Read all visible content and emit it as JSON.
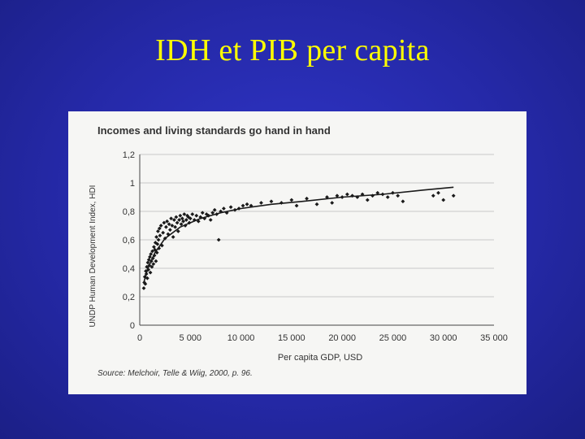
{
  "slide": {
    "title": "IDH et PIB per capita"
  },
  "chart_data": {
    "type": "scatter",
    "title": "Incomes and living standards go hand in hand",
    "xlabel": "Per capita GDP, USD",
    "ylabel": "UNDP Human Development Index, HDI",
    "source": "Source: Melchoir, Telle & Wiig, 2000, p. 96.",
    "xlim": [
      0,
      35000
    ],
    "ylim": [
      0,
      1.2
    ],
    "xticks": [
      0,
      5000,
      10000,
      15000,
      20000,
      25000,
      30000,
      35000
    ],
    "xtick_labels": [
      "0",
      "5 000",
      "10 000",
      "15 000",
      "20 000",
      "25 000",
      "30 000",
      "35 000"
    ],
    "yticks": [
      0,
      0.2,
      0.4,
      0.6,
      0.8,
      1,
      1.2
    ],
    "ytick_labels": [
      "0",
      "0,2",
      "0,4",
      "0,6",
      "0,8",
      "1",
      "1,2"
    ],
    "grid": true,
    "colors": {
      "points": "#1a1a1a",
      "trend": "#1a1a1a",
      "grid": "#c8c8c8",
      "axis": "#444444"
    },
    "points": [
      [
        400,
        0.26
      ],
      [
        450,
        0.3
      ],
      [
        500,
        0.34
      ],
      [
        550,
        0.29
      ],
      [
        600,
        0.38
      ],
      [
        650,
        0.36
      ],
      [
        700,
        0.41
      ],
      [
        750,
        0.33
      ],
      [
        800,
        0.44
      ],
      [
        850,
        0.39
      ],
      [
        900,
        0.46
      ],
      [
        950,
        0.42
      ],
      [
        1000,
        0.48
      ],
      [
        1050,
        0.37
      ],
      [
        1100,
        0.5
      ],
      [
        1150,
        0.45
      ],
      [
        1200,
        0.41
      ],
      [
        1250,
        0.52
      ],
      [
        1300,
        0.47
      ],
      [
        1350,
        0.43
      ],
      [
        1400,
        0.55
      ],
      [
        1450,
        0.49
      ],
      [
        1500,
        0.53
      ],
      [
        1550,
        0.58
      ],
      [
        1600,
        0.45
      ],
      [
        1650,
        0.62
      ],
      [
        1700,
        0.51
      ],
      [
        1750,
        0.57
      ],
      [
        1800,
        0.66
      ],
      [
        1850,
        0.6
      ],
      [
        1900,
        0.54
      ],
      [
        1950,
        0.68
      ],
      [
        2000,
        0.63
      ],
      [
        2100,
        0.7
      ],
      [
        2200,
        0.56
      ],
      [
        2300,
        0.65
      ],
      [
        2400,
        0.72
      ],
      [
        2500,
        0.61
      ],
      [
        2600,
        0.69
      ],
      [
        2700,
        0.73
      ],
      [
        2800,
        0.64
      ],
      [
        2900,
        0.71
      ],
      [
        3000,
        0.67
      ],
      [
        3100,
        0.75
      ],
      [
        3200,
        0.7
      ],
      [
        3300,
        0.62
      ],
      [
        3400,
        0.74
      ],
      [
        3500,
        0.69
      ],
      [
        3600,
        0.76
      ],
      [
        3700,
        0.72
      ],
      [
        3800,
        0.66
      ],
      [
        3900,
        0.74
      ],
      [
        4000,
        0.77
      ],
      [
        4100,
        0.71
      ],
      [
        4200,
        0.75
      ],
      [
        4300,
        0.73
      ],
      [
        4400,
        0.78
      ],
      [
        4500,
        0.7
      ],
      [
        4600,
        0.74
      ],
      [
        4700,
        0.77
      ],
      [
        4800,
        0.76
      ],
      [
        4900,
        0.72
      ],
      [
        5000,
        0.75
      ],
      [
        5200,
        0.78
      ],
      [
        5400,
        0.74
      ],
      [
        5600,
        0.77
      ],
      [
        5800,
        0.73
      ],
      [
        6000,
        0.76
      ],
      [
        6200,
        0.79
      ],
      [
        6400,
        0.75
      ],
      [
        6600,
        0.78
      ],
      [
        6800,
        0.77
      ],
      [
        7000,
        0.74
      ],
      [
        7200,
        0.79
      ],
      [
        7400,
        0.81
      ],
      [
        7600,
        0.78
      ],
      [
        7800,
        0.6
      ],
      [
        8000,
        0.8
      ],
      [
        8300,
        0.82
      ],
      [
        8600,
        0.79
      ],
      [
        9000,
        0.83
      ],
      [
        9400,
        0.81
      ],
      [
        9800,
        0.82
      ],
      [
        10200,
        0.84
      ],
      [
        10600,
        0.85
      ],
      [
        11000,
        0.84
      ],
      [
        12000,
        0.86
      ],
      [
        13000,
        0.87
      ],
      [
        14000,
        0.86
      ],
      [
        15000,
        0.88
      ],
      [
        15500,
        0.84
      ],
      [
        16500,
        0.89
      ],
      [
        17500,
        0.85
      ],
      [
        18500,
        0.9
      ],
      [
        19000,
        0.86
      ],
      [
        19500,
        0.91
      ],
      [
        20000,
        0.9
      ],
      [
        20500,
        0.92
      ],
      [
        21000,
        0.91
      ],
      [
        21500,
        0.9
      ],
      [
        22000,
        0.92
      ],
      [
        22500,
        0.88
      ],
      [
        23000,
        0.91
      ],
      [
        23500,
        0.93
      ],
      [
        24000,
        0.92
      ],
      [
        24500,
        0.9
      ],
      [
        25000,
        0.93
      ],
      [
        25500,
        0.91
      ],
      [
        26000,
        0.87
      ],
      [
        29000,
        0.91
      ],
      [
        29500,
        0.93
      ],
      [
        30000,
        0.88
      ],
      [
        31000,
        0.91
      ]
    ],
    "trend": [
      [
        400,
        0.3
      ],
      [
        800,
        0.4
      ],
      [
        1500,
        0.51
      ],
      [
        2500,
        0.61
      ],
      [
        4000,
        0.69
      ],
      [
        6000,
        0.75
      ],
      [
        8000,
        0.79
      ],
      [
        10000,
        0.82
      ],
      [
        13000,
        0.85
      ],
      [
        16000,
        0.87
      ],
      [
        20000,
        0.9
      ],
      [
        24000,
        0.92
      ],
      [
        28000,
        0.95
      ],
      [
        31000,
        0.97
      ]
    ]
  }
}
